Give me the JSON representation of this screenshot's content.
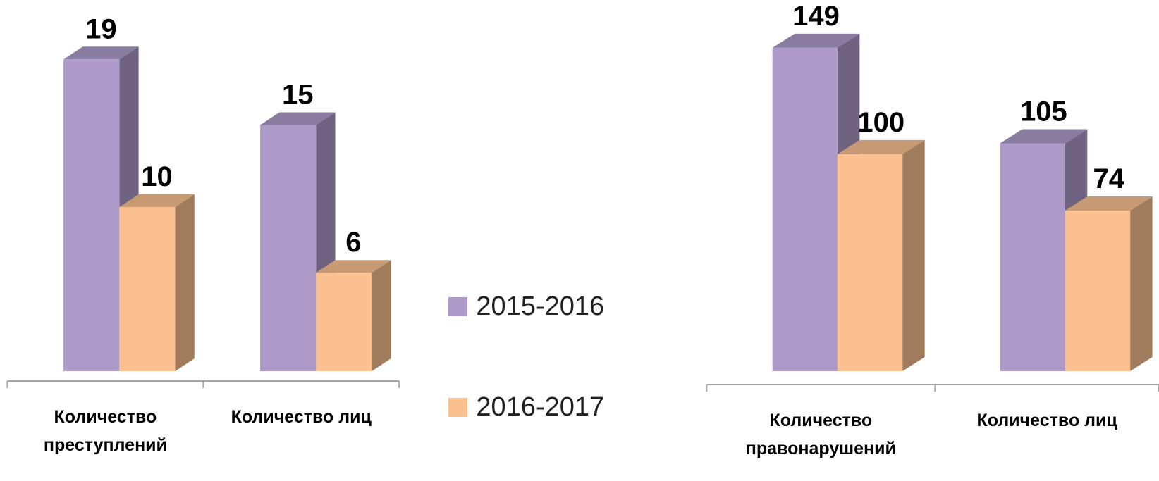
{
  "chart_data": [
    {
      "type": "bar3d",
      "categories": [
        "Количество преступлений",
        "Количество лиц"
      ],
      "series": [
        {
          "name": "2015-2016",
          "color": "#ad9ac9",
          "values": [
            19,
            15
          ]
        },
        {
          "name": "2016-2017",
          "color": "#fac090",
          "values": [
            10,
            6
          ]
        }
      ],
      "ylim": [
        0,
        20
      ]
    },
    {
      "type": "bar3d",
      "categories": [
        "Количество правонарушений",
        "Количество лиц"
      ],
      "series": [
        {
          "color": "#ad9ac9",
          "values": [
            149,
            105
          ]
        },
        {
          "color": "#fac090",
          "values": [
            100,
            74
          ]
        }
      ],
      "ylim": [
        0,
        160
      ]
    }
  ]
}
